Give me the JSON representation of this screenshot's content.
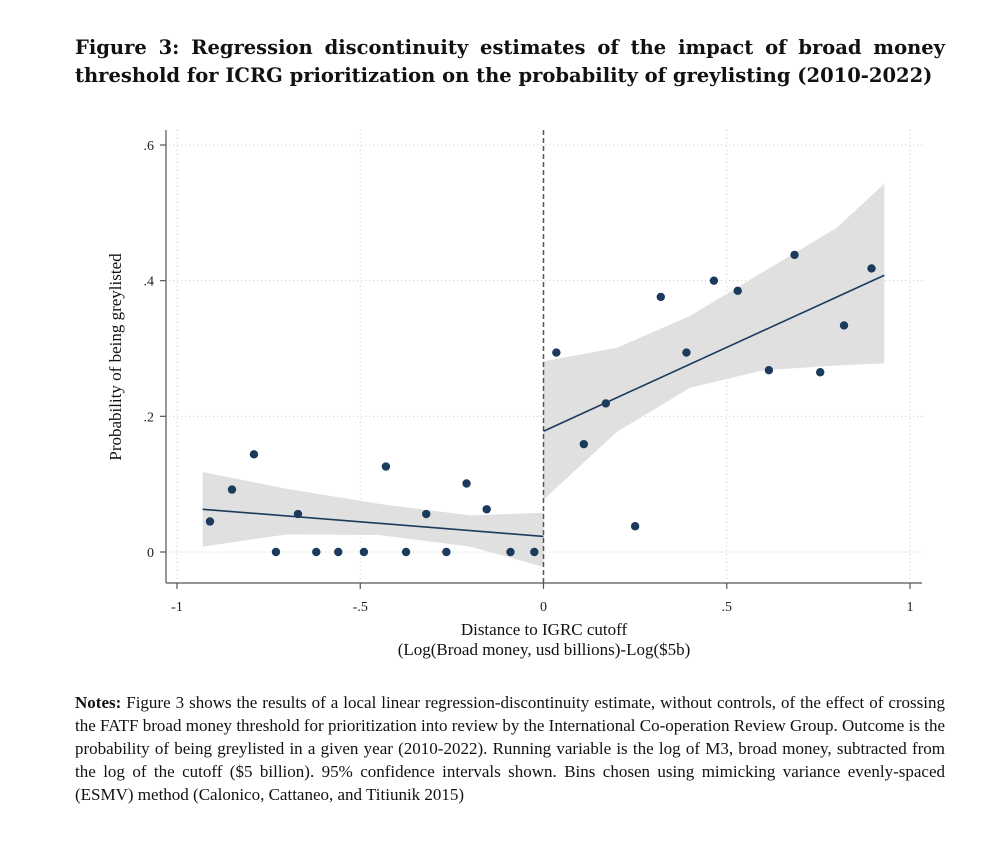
{
  "figure": {
    "title": "Figure 3: Regression discontinuity estimates of the impact of broad money threshold for ICRG prioritization on the probability of greylisting (2010-2022)"
  },
  "notes": {
    "label": "Notes:",
    "text": "Figure 3 shows the results of a local linear regression-discontinuity estimate, without controls, of the effect of crossing the FATF broad money threshold for prioritization into review by the International Co-operation Review Group. Outcome is the probability of being greylisted in a given year (2010-2022). Running variable is the log of M3, broad money, subtracted from the log of the cutoff ($5 billion). 95% confidence intervals shown. Bins chosen using mimicking variance evenly-spaced (ESMV) method (Calonico, Cattaneo, and Titiunik 2015)"
  },
  "colors": {
    "point": "#1b3a5c",
    "fit_line": "#1b3a5c",
    "ci_band": "#e0e0e0",
    "grid": "#c8c8c8",
    "axis": "#555555",
    "cutoff_line": "#555555"
  },
  "chart_data": {
    "type": "scatter",
    "xlabel": "Distance to IGRC cutoff",
    "xlabel2": "(Log(Broad money, usd billions)-Log($5b)",
    "ylabel": "Probability of being greylisted",
    "xlim": [
      -1,
      1
    ],
    "ylim": [
      0,
      0.6
    ],
    "xticks": [
      -1,
      -0.5,
      0,
      0.5,
      1
    ],
    "xtick_labels": [
      "-1",
      "-.5",
      "0",
      ".5",
      "1"
    ],
    "yticks": [
      0,
      0.2,
      0.4,
      0.6
    ],
    "ytick_labels": [
      "0",
      ".2",
      ".4",
      ".6"
    ],
    "grid": true,
    "cutoff": 0,
    "points": [
      {
        "x": -0.91,
        "y": 0.045
      },
      {
        "x": -0.85,
        "y": 0.092
      },
      {
        "x": -0.79,
        "y": 0.144
      },
      {
        "x": -0.73,
        "y": 0.0
      },
      {
        "x": -0.67,
        "y": 0.056
      },
      {
        "x": -0.62,
        "y": 0.0
      },
      {
        "x": -0.56,
        "y": 0.0
      },
      {
        "x": -0.49,
        "y": 0.0
      },
      {
        "x": -0.43,
        "y": 0.126
      },
      {
        "x": -0.375,
        "y": 0.0
      },
      {
        "x": -0.32,
        "y": 0.056
      },
      {
        "x": -0.265,
        "y": 0.0
      },
      {
        "x": -0.21,
        "y": 0.101
      },
      {
        "x": -0.155,
        "y": 0.063
      },
      {
        "x": -0.09,
        "y": 0.0
      },
      {
        "x": -0.025,
        "y": 0.0
      },
      {
        "x": 0.035,
        "y": 0.294
      },
      {
        "x": 0.11,
        "y": 0.159
      },
      {
        "x": 0.17,
        "y": 0.219
      },
      {
        "x": 0.25,
        "y": 0.038
      },
      {
        "x": 0.32,
        "y": 0.376
      },
      {
        "x": 0.39,
        "y": 0.294
      },
      {
        "x": 0.465,
        "y": 0.4
      },
      {
        "x": 0.53,
        "y": 0.385
      },
      {
        "x": 0.615,
        "y": 0.268
      },
      {
        "x": 0.685,
        "y": 0.438
      },
      {
        "x": 0.755,
        "y": 0.265
      },
      {
        "x": 0.82,
        "y": 0.334
      },
      {
        "x": 0.895,
        "y": 0.418
      }
    ],
    "fit_left": {
      "x": [
        -0.93,
        0.0
      ],
      "y": [
        0.063,
        0.023
      ]
    },
    "fit_right": {
      "x": [
        0.0,
        0.93
      ],
      "y": [
        0.178,
        0.408
      ]
    },
    "ci_left": {
      "x": [
        -0.93,
        -0.7,
        -0.45,
        -0.2,
        0.0
      ],
      "upper": [
        0.118,
        0.093,
        0.071,
        0.054,
        0.058
      ],
      "lower": [
        0.008,
        0.026,
        0.025,
        0.008,
        -0.022
      ]
    },
    "ci_right": {
      "x": [
        0.0,
        0.2,
        0.4,
        0.6,
        0.8,
        0.93
      ],
      "upper": [
        0.281,
        0.301,
        0.348,
        0.413,
        0.478,
        0.543
      ],
      "lower": [
        0.077,
        0.177,
        0.242,
        0.268,
        0.275,
        0.278
      ]
    }
  }
}
